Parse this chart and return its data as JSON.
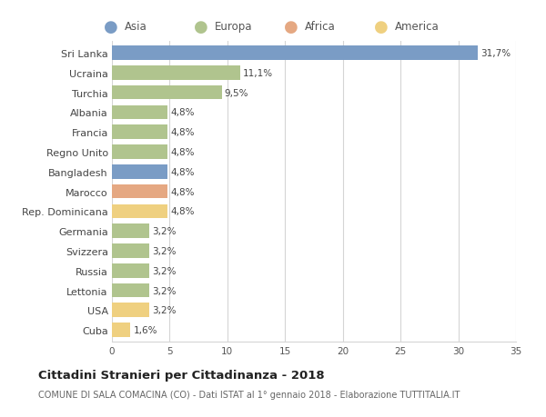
{
  "countries": [
    "Sri Lanka",
    "Ucraina",
    "Turchia",
    "Albania",
    "Francia",
    "Regno Unito",
    "Bangladesh",
    "Marocco",
    "Rep. Dominicana",
    "Germania",
    "Svizzera",
    "Russia",
    "Lettonia",
    "USA",
    "Cuba"
  ],
  "values": [
    31.7,
    11.1,
    9.5,
    4.8,
    4.8,
    4.8,
    4.8,
    4.8,
    4.8,
    3.2,
    3.2,
    3.2,
    3.2,
    3.2,
    1.6
  ],
  "labels": [
    "31,7%",
    "11,1%",
    "9,5%",
    "4,8%",
    "4,8%",
    "4,8%",
    "4,8%",
    "4,8%",
    "4,8%",
    "3,2%",
    "3,2%",
    "3,2%",
    "3,2%",
    "3,2%",
    "1,6%"
  ],
  "continents": [
    "Asia",
    "Europa",
    "Europa",
    "Europa",
    "Europa",
    "Europa",
    "Asia",
    "Africa",
    "America",
    "Europa",
    "Europa",
    "Europa",
    "Europa",
    "America",
    "America"
  ],
  "colors": {
    "Asia": "#7a9cc5",
    "Europa": "#b0c48e",
    "Africa": "#e5a882",
    "America": "#efd080"
  },
  "legend_order": [
    "Asia",
    "Europa",
    "Africa",
    "America"
  ],
  "xlim": [
    0,
    35
  ],
  "xticks": [
    0,
    5,
    10,
    15,
    20,
    25,
    30,
    35
  ],
  "title": "Cittadini Stranieri per Cittadinanza - 2018",
  "subtitle": "COMUNE DI SALA COMACINA (CO) - Dati ISTAT al 1° gennaio 2018 - Elaborazione TUTTITALIA.IT",
  "bg_color": "#ffffff",
  "grid_color": "#d5d5d5",
  "bar_height": 0.72
}
